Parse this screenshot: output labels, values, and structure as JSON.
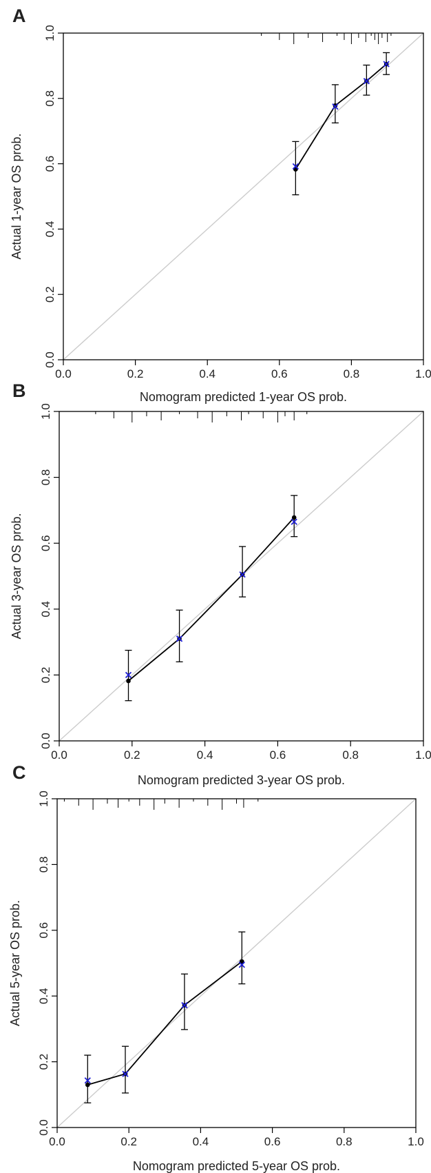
{
  "figure": {
    "panel_labels": [
      "A",
      "B",
      "C"
    ]
  },
  "chart_data": [
    {
      "type": "calibration",
      "panel": "A",
      "xlabel": "Nomogram predicted 1-year OS prob.",
      "ylabel": "Actual 1-year OS prob.",
      "xlim": [
        0,
        1
      ],
      "ylim": [
        0,
        1
      ],
      "xticks": [
        "0.0",
        "0.2",
        "0.4",
        "0.6",
        "0.8",
        "1.0"
      ],
      "yticks": [
        "0.0",
        "0.2",
        "0.4",
        "0.6",
        "0.8",
        "1.0"
      ],
      "reference_line": [
        [
          0,
          0
        ],
        [
          1,
          1
        ]
      ],
      "observed": {
        "x": [
          0.645,
          0.755,
          0.842,
          0.897
        ],
        "y": [
          0.583,
          0.778,
          0.853,
          0.905
        ]
      },
      "error_bars": {
        "lower": [
          0.505,
          0.725,
          0.81,
          0.873
        ],
        "upper": [
          0.668,
          0.842,
          0.902,
          0.94
        ]
      },
      "bias_corrected": {
        "x": [
          0.645,
          0.755,
          0.842,
          0.897
        ],
        "y": [
          0.592,
          0.775,
          0.853,
          0.905
        ]
      },
      "rug": [
        0.55,
        0.6,
        0.64,
        0.68,
        0.72,
        0.76,
        0.78,
        0.8,
        0.82,
        0.84,
        0.855,
        0.865,
        0.875,
        0.885,
        0.9,
        0.91
      ],
      "colors": {
        "bias_corrected": "#1f1fd6",
        "observed": "#000000",
        "reference": "#cccccc"
      }
    },
    {
      "type": "calibration",
      "panel": "B",
      "xlabel": "Nomogram predicted 3-year OS prob.",
      "ylabel": "Actual 3-year OS prob.",
      "xlim": [
        0,
        1
      ],
      "ylim": [
        0,
        1
      ],
      "xticks": [
        "0.0",
        "0.2",
        "0.4",
        "0.6",
        "0.8",
        "1.0"
      ],
      "yticks": [
        "0.0",
        "0.2",
        "0.4",
        "0.6",
        "0.8",
        "1.0"
      ],
      "reference_line": [
        [
          0,
          0
        ],
        [
          1,
          1
        ]
      ],
      "observed": {
        "x": [
          0.19,
          0.33,
          0.503,
          0.645
        ],
        "y": [
          0.182,
          0.31,
          0.505,
          0.678
        ]
      },
      "error_bars": {
        "lower": [
          0.122,
          0.24,
          0.437,
          0.62
        ],
        "upper": [
          0.275,
          0.397,
          0.59,
          0.745
        ]
      },
      "bias_corrected": {
        "x": [
          0.19,
          0.33,
          0.503,
          0.645
        ],
        "y": [
          0.2,
          0.31,
          0.505,
          0.665
        ]
      },
      "rug": [
        0.1,
        0.15,
        0.2,
        0.24,
        0.28,
        0.33,
        0.38,
        0.42,
        0.46,
        0.5,
        0.52,
        0.56,
        0.6,
        0.62,
        0.645,
        0.68
      ],
      "colors": {
        "bias_corrected": "#1f1fd6",
        "observed": "#000000",
        "reference": "#cccccc"
      }
    },
    {
      "type": "calibration",
      "panel": "C",
      "xlabel": "Nomogram predicted 5-year OS prob.",
      "ylabel": "Actual 5-year OS prob.",
      "xlim": [
        0,
        1
      ],
      "ylim": [
        0,
        1
      ],
      "xticks": [
        "0.0",
        "0.2",
        "0.4",
        "0.6",
        "0.8",
        "1.0"
      ],
      "yticks": [
        "0.0",
        "0.2",
        "0.4",
        "0.6",
        "0.8",
        "1.0"
      ],
      "reference_line": [
        [
          0,
          0
        ],
        [
          1,
          1
        ]
      ],
      "observed": {
        "x": [
          0.085,
          0.19,
          0.355,
          0.515
        ],
        "y": [
          0.13,
          0.163,
          0.372,
          0.505
        ]
      },
      "error_bars": {
        "lower": [
          0.075,
          0.105,
          0.298,
          0.437
        ],
        "upper": [
          0.22,
          0.247,
          0.467,
          0.595
        ]
      },
      "bias_corrected": {
        "x": [
          0.085,
          0.19,
          0.355,
          0.515
        ],
        "y": [
          0.143,
          0.163,
          0.372,
          0.495
        ]
      },
      "rug": [
        0.02,
        0.06,
        0.1,
        0.14,
        0.17,
        0.2,
        0.23,
        0.27,
        0.3,
        0.34,
        0.38,
        0.42,
        0.46,
        0.5,
        0.52,
        0.56
      ],
      "colors": {
        "bias_corrected": "#1f1fd6",
        "observed": "#000000",
        "reference": "#cccccc"
      }
    }
  ]
}
